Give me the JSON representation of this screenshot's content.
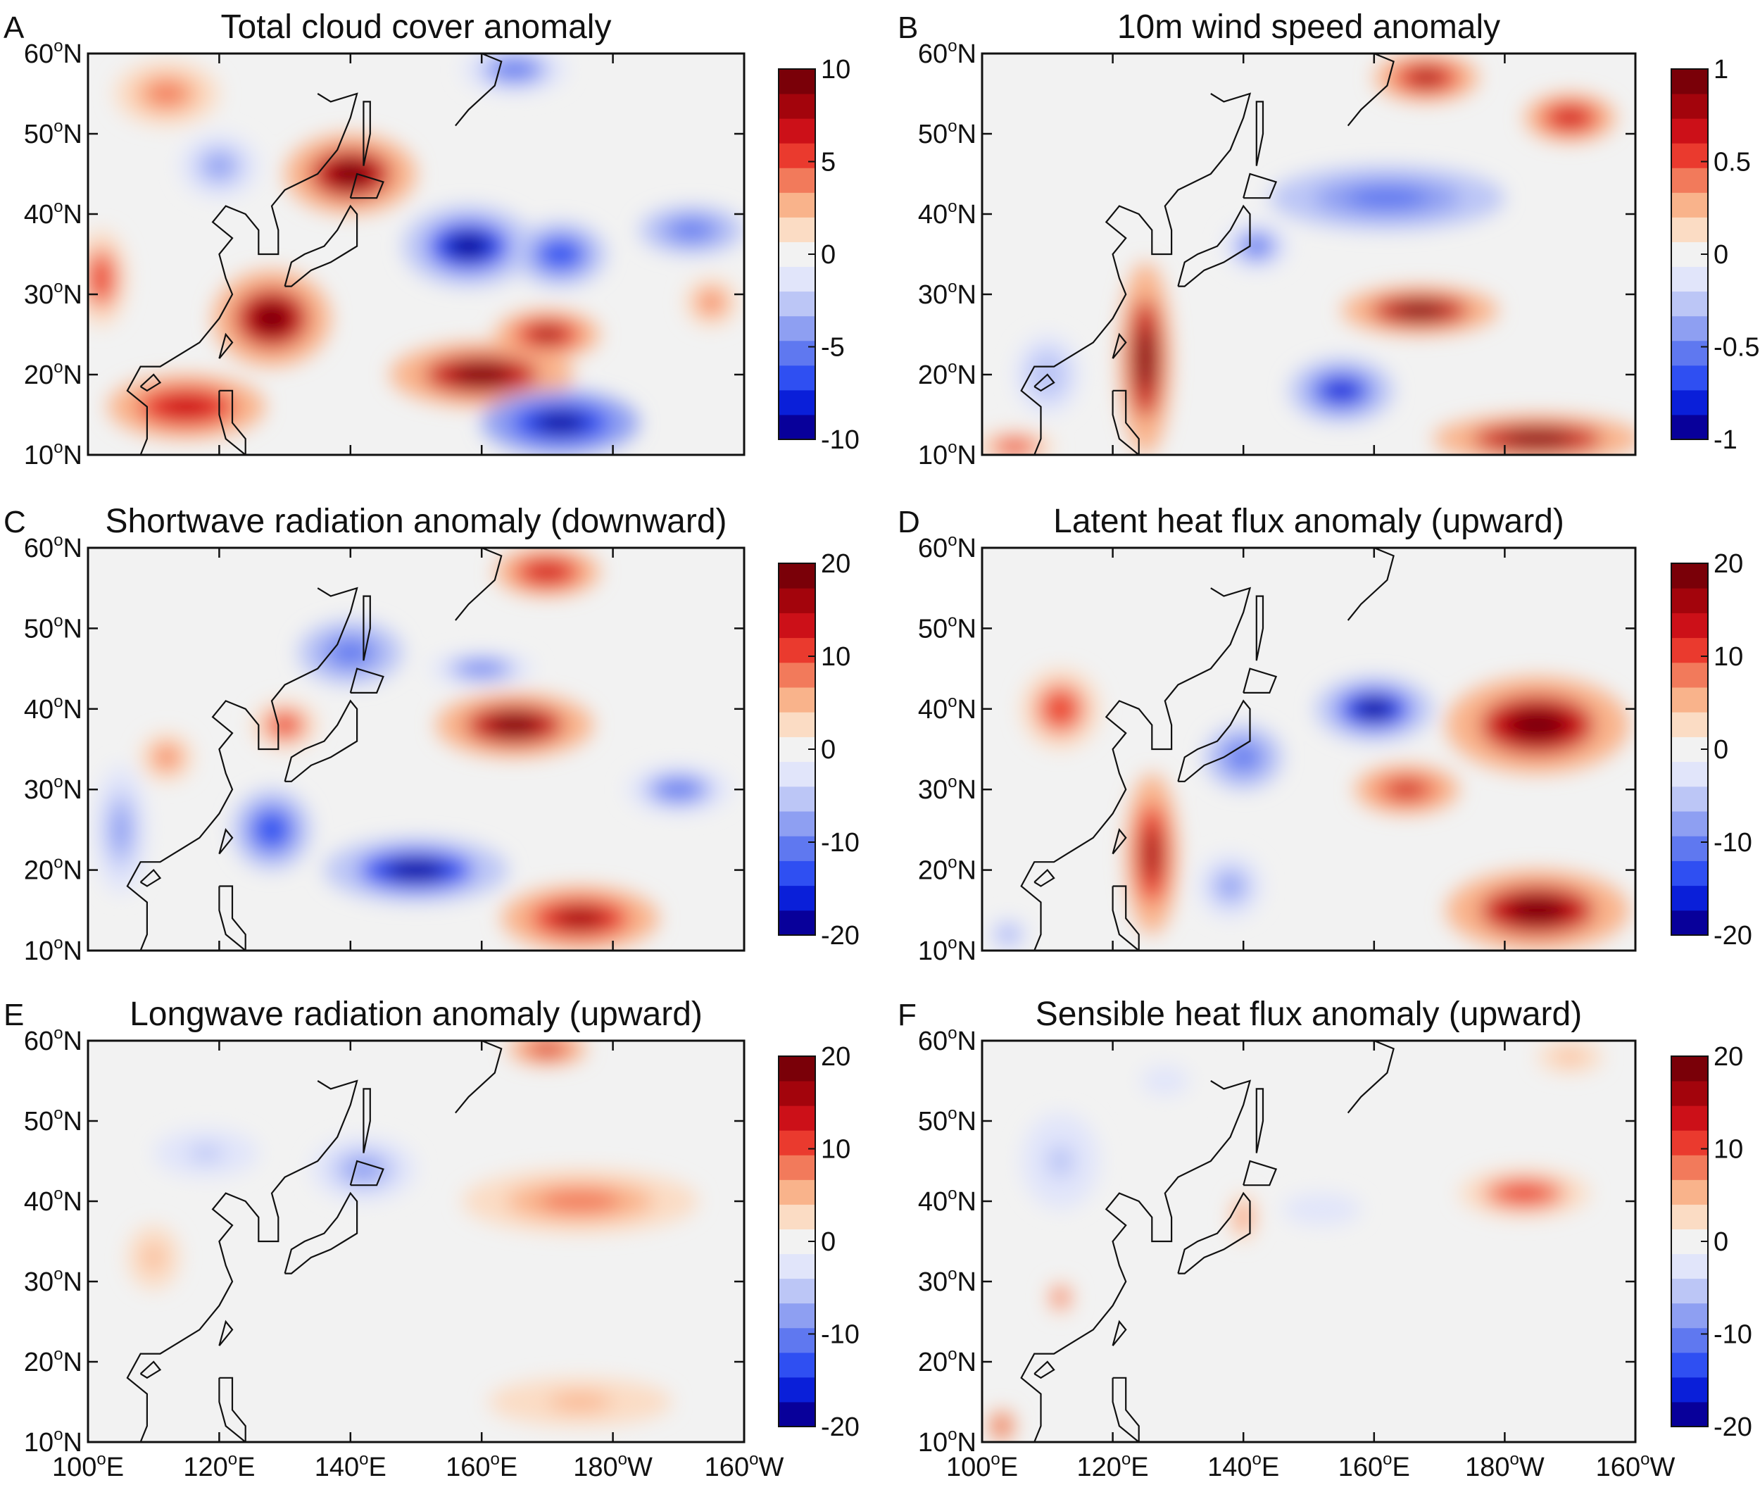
{
  "figure": {
    "colorscale": [
      "#08009a",
      "#0a1fd9",
      "#2f4ff2",
      "#5f78f0",
      "#8e9ff2",
      "#bcc6f6",
      "#e1e5fa",
      "#f2f2f2",
      "#fbdcc4",
      "#f9b38b",
      "#f27a5b",
      "#ea3a2e",
      "#cc1018",
      "#a3040c",
      "#7a0008"
    ]
  },
  "chart_data": [
    {
      "id": "A",
      "letter": "A",
      "type": "heatmap",
      "title": "Total cloud cover anomaly",
      "xlabel": "",
      "ylabel": "",
      "xlim": [
        100,
        200
      ],
      "ylim": [
        10,
        60
      ],
      "x_ticks": [
        100,
        120,
        140,
        160,
        180,
        200
      ],
      "x_tick_labels": [
        {
          "v": "100",
          "u": "o",
          "s": "E"
        },
        {
          "v": "120",
          "u": "o",
          "s": "E"
        },
        {
          "v": "140",
          "u": "o",
          "s": "E"
        },
        {
          "v": "160",
          "u": "o",
          "s": "E"
        },
        {
          "v": "180",
          "u": "o",
          "s": "W"
        },
        {
          "v": "160",
          "u": "o",
          "s": "W"
        }
      ],
      "y_ticks": [
        60,
        50,
        40,
        30,
        20,
        10
      ],
      "y_tick_labels": [
        {
          "v": "60",
          "u": "o",
          "s": "N"
        },
        {
          "v": "50",
          "u": "o",
          "s": "N"
        },
        {
          "v": "40",
          "u": "o",
          "s": "N"
        },
        {
          "v": "30",
          "u": "o",
          "s": "N"
        },
        {
          "v": "20",
          "u": "o",
          "s": "N"
        },
        {
          "v": "10",
          "u": "o",
          "s": "N"
        }
      ],
      "show_x_labels": false,
      "colorbar": {
        "range": [
          -10,
          10
        ],
        "ticks": [
          10,
          5,
          0,
          -5,
          -10
        ],
        "tick_labels": [
          "10",
          "5",
          "0",
          "-5",
          "-10"
        ]
      },
      "features": [
        {
          "lon": 140,
          "lat": 45,
          "value": 9,
          "rx": 10,
          "ry": 5
        },
        {
          "lon": 128,
          "lat": 27,
          "value": 9,
          "rx": 9,
          "ry": 6
        },
        {
          "lon": 115,
          "lat": 16,
          "value": 7,
          "rx": 12,
          "ry": 4
        },
        {
          "lon": 160,
          "lat": 20,
          "value": 9,
          "rx": 14,
          "ry": 4
        },
        {
          "lon": 170,
          "lat": 25,
          "value": 8,
          "rx": 8,
          "ry": 3
        },
        {
          "lon": 158,
          "lat": 36,
          "value": -9,
          "rx": 10,
          "ry": 5
        },
        {
          "lon": 172,
          "lat": 35,
          "value": -7,
          "rx": 7,
          "ry": 4
        },
        {
          "lon": 172,
          "lat": 14,
          "value": -10,
          "rx": 12,
          "ry": 4
        },
        {
          "lon": 192,
          "lat": 38,
          "value": -6,
          "rx": 8,
          "ry": 3
        },
        {
          "lon": 102,
          "lat": 32,
          "value": 5,
          "rx": 4,
          "ry": 6
        },
        {
          "lon": 112,
          "lat": 55,
          "value": 4,
          "rx": 8,
          "ry": 4
        },
        {
          "lon": 120,
          "lat": 46,
          "value": -4,
          "rx": 6,
          "ry": 4
        },
        {
          "lon": 165,
          "lat": 58,
          "value": -5,
          "rx": 8,
          "ry": 3
        },
        {
          "lon": 195,
          "lat": 29,
          "value": 4,
          "rx": 4,
          "ry": 3
        }
      ]
    },
    {
      "id": "B",
      "letter": "B",
      "type": "heatmap",
      "title": "10m wind speed anomaly",
      "xlabel": "",
      "ylabel": "",
      "xlim": [
        100,
        200
      ],
      "ylim": [
        10,
        60
      ],
      "x_ticks": [
        100,
        120,
        140,
        160,
        180,
        200
      ],
      "x_tick_labels": [
        {
          "v": "100",
          "u": "o",
          "s": "E"
        },
        {
          "v": "120",
          "u": "o",
          "s": "E"
        },
        {
          "v": "140",
          "u": "o",
          "s": "E"
        },
        {
          "v": "160",
          "u": "o",
          "s": "E"
        },
        {
          "v": "180",
          "u": "o",
          "s": "W"
        },
        {
          "v": "160",
          "u": "o",
          "s": "W"
        }
      ],
      "y_ticks": [
        60,
        50,
        40,
        30,
        20,
        10
      ],
      "y_tick_labels": [
        {
          "v": "60",
          "u": "o",
          "s": "N"
        },
        {
          "v": "50",
          "u": "o",
          "s": "N"
        },
        {
          "v": "40",
          "u": "o",
          "s": "N"
        },
        {
          "v": "30",
          "u": "o",
          "s": "N"
        },
        {
          "v": "20",
          "u": "o",
          "s": "N"
        },
        {
          "v": "10",
          "u": "o",
          "s": "N"
        }
      ],
      "show_x_labels": false,
      "colorbar": {
        "range": [
          -1,
          1
        ],
        "ticks": [
          1,
          0.5,
          0,
          -0.5,
          -1
        ],
        "tick_labels": [
          "1",
          "0.5",
          "0",
          "-0.5",
          "-1"
        ]
      },
      "features": [
        {
          "lon": 125,
          "lat": 22,
          "value": 0.9,
          "rx": 4,
          "ry": 12
        },
        {
          "lon": 167,
          "lat": 28,
          "value": 0.9,
          "rx": 12,
          "ry": 3
        },
        {
          "lon": 185,
          "lat": 12,
          "value": 0.9,
          "rx": 16,
          "ry": 3
        },
        {
          "lon": 168,
          "lat": 57,
          "value": 0.8,
          "rx": 8,
          "ry": 3
        },
        {
          "lon": 190,
          "lat": 52,
          "value": 0.7,
          "rx": 7,
          "ry": 3
        },
        {
          "lon": 105,
          "lat": 11,
          "value": 0.5,
          "rx": 6,
          "ry": 2
        },
        {
          "lon": 162,
          "lat": 42,
          "value": -0.6,
          "rx": 18,
          "ry": 4
        },
        {
          "lon": 155,
          "lat": 18,
          "value": -0.8,
          "rx": 8,
          "ry": 4
        },
        {
          "lon": 142,
          "lat": 36,
          "value": -0.5,
          "rx": 5,
          "ry": 3
        },
        {
          "lon": 110,
          "lat": 20,
          "value": -0.3,
          "rx": 5,
          "ry": 5
        }
      ]
    },
    {
      "id": "C",
      "letter": "C",
      "type": "heatmap",
      "title": "Shortwave radiation anomaly (downward)",
      "xlabel": "",
      "ylabel": "",
      "xlim": [
        100,
        200
      ],
      "ylim": [
        10,
        60
      ],
      "x_ticks": [
        100,
        120,
        140,
        160,
        180,
        200
      ],
      "x_tick_labels": [
        {
          "v": "100",
          "u": "o",
          "s": "E"
        },
        {
          "v": "120",
          "u": "o",
          "s": "E"
        },
        {
          "v": "140",
          "u": "o",
          "s": "E"
        },
        {
          "v": "160",
          "u": "o",
          "s": "E"
        },
        {
          "v": "180",
          "u": "o",
          "s": "W"
        },
        {
          "v": "160",
          "u": "o",
          "s": "W"
        }
      ],
      "y_ticks": [
        60,
        50,
        40,
        30,
        20,
        10
      ],
      "y_tick_labels": [
        {
          "v": "60",
          "u": "o",
          "s": "N"
        },
        {
          "v": "50",
          "u": "o",
          "s": "N"
        },
        {
          "v": "40",
          "u": "o",
          "s": "N"
        },
        {
          "v": "30",
          "u": "o",
          "s": "N"
        },
        {
          "v": "20",
          "u": "o",
          "s": "N"
        },
        {
          "v": "10",
          "u": "o",
          "s": "N"
        }
      ],
      "show_x_labels": false,
      "colorbar": {
        "range": [
          -20,
          20
        ],
        "ticks": [
          20,
          10,
          0,
          -10,
          -20
        ],
        "tick_labels": [
          "20",
          "10",
          "0",
          "-10",
          "-20"
        ]
      },
      "features": [
        {
          "lon": 165,
          "lat": 38,
          "value": 18,
          "rx": 12,
          "ry": 4
        },
        {
          "lon": 175,
          "lat": 14,
          "value": 17,
          "rx": 12,
          "ry": 4
        },
        {
          "lon": 170,
          "lat": 57,
          "value": 14,
          "rx": 8,
          "ry": 3
        },
        {
          "lon": 130,
          "lat": 38,
          "value": 10,
          "rx": 5,
          "ry": 3
        },
        {
          "lon": 112,
          "lat": 34,
          "value": 8,
          "rx": 4,
          "ry": 3
        },
        {
          "lon": 140,
          "lat": 47,
          "value": -12,
          "rx": 8,
          "ry": 4
        },
        {
          "lon": 128,
          "lat": 25,
          "value": -14,
          "rx": 6,
          "ry": 5
        },
        {
          "lon": 150,
          "lat": 20,
          "value": -18,
          "rx": 14,
          "ry": 4
        },
        {
          "lon": 160,
          "lat": 45,
          "value": -10,
          "rx": 8,
          "ry": 2
        },
        {
          "lon": 190,
          "lat": 30,
          "value": -10,
          "rx": 8,
          "ry": 3
        },
        {
          "lon": 105,
          "lat": 25,
          "value": -8,
          "rx": 4,
          "ry": 8
        }
      ]
    },
    {
      "id": "D",
      "letter": "D",
      "type": "heatmap",
      "title": "Latent heat flux anomaly (upward)",
      "xlabel": "",
      "ylabel": "",
      "xlim": [
        100,
        200
      ],
      "ylim": [
        10,
        60
      ],
      "x_ticks": [
        100,
        120,
        140,
        160,
        180,
        200
      ],
      "x_tick_labels": [
        {
          "v": "100",
          "u": "o",
          "s": "E"
        },
        {
          "v": "120",
          "u": "o",
          "s": "E"
        },
        {
          "v": "140",
          "u": "o",
          "s": "E"
        },
        {
          "v": "160",
          "u": "o",
          "s": "E"
        },
        {
          "v": "180",
          "u": "o",
          "s": "W"
        },
        {
          "v": "160",
          "u": "o",
          "s": "W"
        }
      ],
      "y_ticks": [
        60,
        50,
        40,
        30,
        20,
        10
      ],
      "y_tick_labels": [
        {
          "v": "60",
          "u": "o",
          "s": "N"
        },
        {
          "v": "50",
          "u": "o",
          "s": "N"
        },
        {
          "v": "40",
          "u": "o",
          "s": "N"
        },
        {
          "v": "30",
          "u": "o",
          "s": "N"
        },
        {
          "v": "20",
          "u": "o",
          "s": "N"
        },
        {
          "v": "10",
          "u": "o",
          "s": "N"
        }
      ],
      "show_x_labels": false,
      "colorbar": {
        "range": [
          -20,
          20
        ],
        "ticks": [
          20,
          10,
          0,
          -10,
          -20
        ],
        "tick_labels": [
          "20",
          "10",
          "0",
          "-10",
          "-20"
        ]
      },
      "features": [
        {
          "lon": 185,
          "lat": 38,
          "value": 18,
          "rx": 14,
          "ry": 6
        },
        {
          "lon": 185,
          "lat": 15,
          "value": 18,
          "rx": 14,
          "ry": 5
        },
        {
          "lon": 126,
          "lat": 22,
          "value": 17,
          "rx": 4,
          "ry": 10
        },
        {
          "lon": 165,
          "lat": 30,
          "value": 12,
          "rx": 8,
          "ry": 3
        },
        {
          "lon": 112,
          "lat": 40,
          "value": 10,
          "rx": 6,
          "ry": 5
        },
        {
          "lon": 160,
          "lat": 40,
          "value": -18,
          "rx": 9,
          "ry": 4
        },
        {
          "lon": 140,
          "lat": 34,
          "value": -12,
          "rx": 6,
          "ry": 4
        },
        {
          "lon": 138,
          "lat": 18,
          "value": -8,
          "rx": 5,
          "ry": 4
        },
        {
          "lon": 104,
          "lat": 12,
          "value": -8,
          "rx": 3,
          "ry": 2
        }
      ]
    },
    {
      "id": "E",
      "letter": "E",
      "type": "heatmap",
      "title": "Longwave radiation anomaly (upward)",
      "xlabel": "",
      "ylabel": "",
      "xlim": [
        100,
        200
      ],
      "ylim": [
        10,
        60
      ],
      "x_ticks": [
        100,
        120,
        140,
        160,
        180,
        200
      ],
      "x_tick_labels": [
        {
          "v": "100",
          "u": "o",
          "s": "E"
        },
        {
          "v": "120",
          "u": "o",
          "s": "E"
        },
        {
          "v": "140",
          "u": "o",
          "s": "E"
        },
        {
          "v": "160",
          "u": "o",
          "s": "E"
        },
        {
          "v": "180",
          "u": "o",
          "s": "W"
        },
        {
          "v": "160",
          "u": "o",
          "s": "W"
        }
      ],
      "y_ticks": [
        60,
        50,
        40,
        30,
        20,
        10
      ],
      "y_tick_labels": [
        {
          "v": "60",
          "u": "o",
          "s": "N"
        },
        {
          "v": "50",
          "u": "o",
          "s": "N"
        },
        {
          "v": "40",
          "u": "o",
          "s": "N"
        },
        {
          "v": "30",
          "u": "o",
          "s": "N"
        },
        {
          "v": "20",
          "u": "o",
          "s": "N"
        },
        {
          "v": "10",
          "u": "o",
          "s": "N"
        }
      ],
      "show_x_labels": true,
      "colorbar": {
        "range": [
          -20,
          20
        ],
        "ticks": [
          20,
          10,
          0,
          -10,
          -20
        ],
        "tick_labels": [
          "20",
          "10",
          "0",
          "-10",
          "-20"
        ]
      },
      "features": [
        {
          "lon": 175,
          "lat": 40,
          "value": 8,
          "rx": 18,
          "ry": 4
        },
        {
          "lon": 170,
          "lat": 59,
          "value": 12,
          "rx": 6,
          "ry": 2
        },
        {
          "lon": 175,
          "lat": 15,
          "value": 5,
          "rx": 14,
          "ry": 3
        },
        {
          "lon": 142,
          "lat": 44,
          "value": -8,
          "rx": 8,
          "ry": 4
        },
        {
          "lon": 118,
          "lat": 46,
          "value": -5,
          "rx": 8,
          "ry": 3
        },
        {
          "lon": 110,
          "lat": 33,
          "value": 4,
          "rx": 4,
          "ry": 4
        }
      ]
    },
    {
      "id": "F",
      "letter": "F",
      "type": "heatmap",
      "title": "Sensible heat flux anomaly (upward)",
      "xlabel": "",
      "ylabel": "",
      "xlim": [
        100,
        200
      ],
      "ylim": [
        10,
        60
      ],
      "x_ticks": [
        100,
        120,
        140,
        160,
        180,
        200
      ],
      "x_tick_labels": [
        {
          "v": "100",
          "u": "o",
          "s": "E"
        },
        {
          "v": "120",
          "u": "o",
          "s": "E"
        },
        {
          "v": "140",
          "u": "o",
          "s": "E"
        },
        {
          "v": "160",
          "u": "o",
          "s": "E"
        },
        {
          "v": "180",
          "u": "o",
          "s": "W"
        },
        {
          "v": "160",
          "u": "o",
          "s": "W"
        }
      ],
      "y_ticks": [
        60,
        50,
        40,
        30,
        20,
        10
      ],
      "y_tick_labels": [
        {
          "v": "60",
          "u": "o",
          "s": "N"
        },
        {
          "v": "50",
          "u": "o",
          "s": "N"
        },
        {
          "v": "40",
          "u": "o",
          "s": "N"
        },
        {
          "v": "30",
          "u": "o",
          "s": "N"
        },
        {
          "v": "20",
          "u": "o",
          "s": "N"
        },
        {
          "v": "10",
          "u": "o",
          "s": "N"
        }
      ],
      "show_x_labels": true,
      "colorbar": {
        "range": [
          -20,
          20
        ],
        "ticks": [
          20,
          10,
          0,
          -10,
          -20
        ],
        "tick_labels": [
          "20",
          "10",
          "0",
          "-10",
          "-20"
        ]
      },
      "features": [
        {
          "lon": 183,
          "lat": 41,
          "value": 10,
          "rx": 10,
          "ry": 3
        },
        {
          "lon": 140,
          "lat": 38,
          "value": 8,
          "rx": 2,
          "ry": 3
        },
        {
          "lon": 112,
          "lat": 28,
          "value": 10,
          "rx": 2,
          "ry": 2
        },
        {
          "lon": 103,
          "lat": 12,
          "value": 12,
          "rx": 2,
          "ry": 2
        },
        {
          "lon": 112,
          "lat": 45,
          "value": -5,
          "rx": 6,
          "ry": 6
        },
        {
          "lon": 152,
          "lat": 39,
          "value": -4,
          "rx": 6,
          "ry": 2
        },
        {
          "lon": 128,
          "lat": 55,
          "value": -3,
          "rx": 6,
          "ry": 3
        },
        {
          "lon": 190,
          "lat": 58,
          "value": 4,
          "rx": 5,
          "ry": 2
        }
      ]
    }
  ]
}
